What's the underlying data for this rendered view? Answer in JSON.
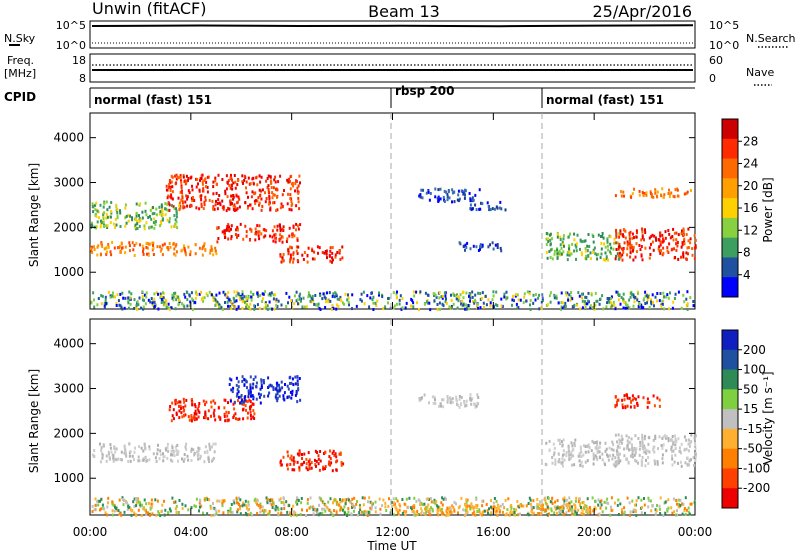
{
  "header": {
    "title_left": "Unwin (fitACF)",
    "title_center": "Beam 13",
    "title_right": "25/Apr/2016"
  },
  "noise_panel": {
    "label_left": "N.Sky",
    "label_right": "N.Search",
    "ticks_left": [
      "10^5",
      "10^0"
    ],
    "ticks_right": [
      "10^5",
      "10^0"
    ]
  },
  "freq_panel": {
    "label_top": "Freq.",
    "label_unit": "[MHz]",
    "ticks_left": [
      "18",
      "8"
    ],
    "ticks_right": [
      "60",
      "0"
    ],
    "label_right": "Nave"
  },
  "cpid_panel": {
    "label": "CPID",
    "segments": [
      {
        "label": "normal (fast) 151",
        "start_h": 0,
        "end_h": 12
      },
      {
        "label": "rbsp 200",
        "start_h": 12,
        "end_h": 18
      },
      {
        "label": "normal (fast) 151",
        "start_h": 18,
        "end_h": 24
      }
    ]
  },
  "axes": {
    "x_ticks": [
      "00:00",
      "04:00",
      "08:00",
      "12:00",
      "16:00",
      "20:00",
      "00:00"
    ],
    "x_tick_hours": [
      0,
      4,
      8,
      12,
      16,
      20,
      24
    ],
    "xlabel": "Time UT",
    "ylabel": "Slant Range [km]",
    "y_ticks": [
      "4000",
      "3000",
      "2000",
      "1000"
    ],
    "y_tick_values": [
      4000,
      3000,
      2000,
      1000
    ],
    "ylim": [
      180,
      4550
    ]
  },
  "power_colorbar": {
    "label": "Power [dB]",
    "ticks": [
      "28",
      "24",
      "20",
      "16",
      "12",
      "8",
      "4"
    ],
    "colors": [
      "#cc0000",
      "#ff2a00",
      "#ff6a00",
      "#ffa000",
      "#ffd000",
      "#88d040",
      "#3c9f60",
      "#2050a0",
      "#0000ff"
    ]
  },
  "velocity_colorbar": {
    "label": "Velocity [m s⁻¹]",
    "ticks": [
      "200",
      "100",
      "50",
      "15",
      "-15",
      "-50",
      "-100",
      "-200"
    ],
    "colors": [
      "#1020c0",
      "#2050a0",
      "#2e8b57",
      "#7fd040",
      "#c0c0c0",
      "#ffb030",
      "#ff8000",
      "#ff4000",
      "#ee0000"
    ]
  },
  "chart_data": [
    {
      "type": "scatter",
      "title": "Power",
      "x_unit": "hours UT",
      "y_unit": "slant range km",
      "ylim": [
        180,
        4550
      ],
      "xlim": [
        0,
        24
      ],
      "scatter_regions": [
        {
          "x": [
            0.0,
            5.0
          ],
          "y": [
            1400,
            1700
          ],
          "level": "orange"
        },
        {
          "x": [
            5.0,
            8.3
          ],
          "y": [
            1700,
            2100
          ],
          "level": "red"
        },
        {
          "x": [
            3.0,
            8.3
          ],
          "y": [
            2400,
            3200
          ],
          "level": "red"
        },
        {
          "x": [
            7.5,
            10.0
          ],
          "y": [
            1250,
            1600
          ],
          "level": "red"
        },
        {
          "x": [
            0.0,
            3.5
          ],
          "y": [
            2000,
            2600
          ],
          "level": "green"
        },
        {
          "x": [
            13.0,
            15.5
          ],
          "y": [
            2600,
            2900
          ],
          "level": "blue"
        },
        {
          "x": [
            15.0,
            16.5
          ],
          "y": [
            2400,
            2600
          ],
          "level": "blue"
        },
        {
          "x": [
            14.5,
            16.3
          ],
          "y": [
            1500,
            1700
          ],
          "level": "blue"
        },
        {
          "x": [
            18.0,
            21.0
          ],
          "y": [
            1300,
            1900
          ],
          "level": "green"
        },
        {
          "x": [
            20.8,
            24.0
          ],
          "y": [
            1300,
            2000
          ],
          "level": "red"
        },
        {
          "x": [
            20.8,
            24.0
          ],
          "y": [
            2700,
            2900
          ],
          "level": "orange"
        },
        {
          "x": [
            0.0,
            24.0
          ],
          "y": [
            200,
            600
          ],
          "level": "mixed"
        }
      ]
    },
    {
      "type": "scatter",
      "title": "Velocity",
      "x_unit": "hours UT",
      "y_unit": "slant range km",
      "ylim": [
        180,
        4550
      ],
      "xlim": [
        0,
        24
      ],
      "scatter_regions": [
        {
          "x": [
            0.0,
            5.0
          ],
          "y": [
            1400,
            1800
          ],
          "level": "grey"
        },
        {
          "x": [
            3.0,
            6.5
          ],
          "y": [
            2300,
            2800
          ],
          "level": "red"
        },
        {
          "x": [
            5.5,
            8.3
          ],
          "y": [
            2700,
            3300
          ],
          "level": "blue"
        },
        {
          "x": [
            7.5,
            10.0
          ],
          "y": [
            1200,
            1650
          ],
          "level": "red"
        },
        {
          "x": [
            18.0,
            21.0
          ],
          "y": [
            1300,
            1900
          ],
          "level": "grey"
        },
        {
          "x": [
            20.8,
            24.0
          ],
          "y": [
            1300,
            2000
          ],
          "level": "grey"
        },
        {
          "x": [
            20.8,
            22.6
          ],
          "y": [
            2600,
            2900
          ],
          "level": "red"
        },
        {
          "x": [
            13.0,
            15.5
          ],
          "y": [
            2600,
            2900
          ],
          "level": "grey"
        },
        {
          "x": [
            12.0,
            20.0
          ],
          "y": [
            200,
            450
          ],
          "level": "orange"
        },
        {
          "x": [
            0.0,
            24.0
          ],
          "y": [
            200,
            600
          ],
          "level": "mixed"
        }
      ]
    }
  ]
}
